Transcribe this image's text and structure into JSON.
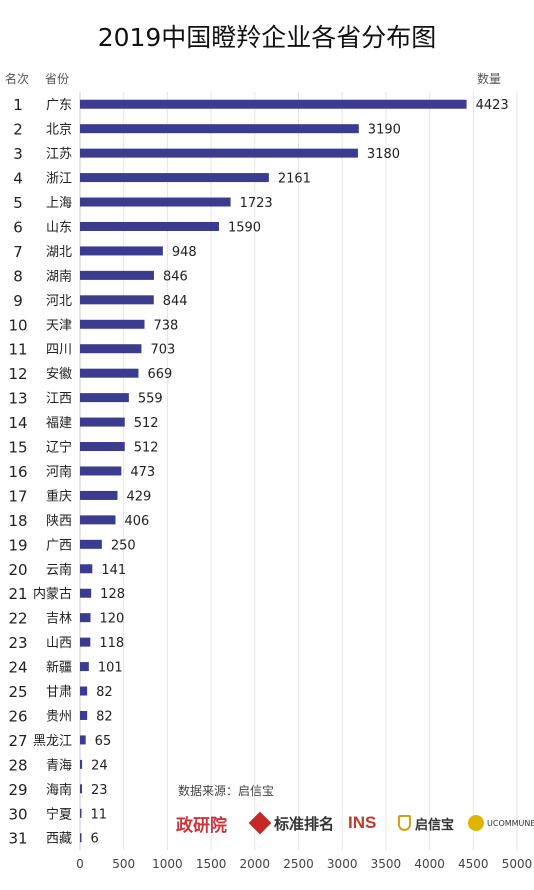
{
  "header": {
    "title": "2019中国瞪羚企业各省分布图",
    "rank_header": "名次",
    "province_header": "省份",
    "value_header": "数量"
  },
  "footer": {
    "source": "数据来源：启信宝",
    "logos": [
      {
        "name": "政研院",
        "icon": "zhengyanyuan-logo",
        "color": "#d0323a"
      },
      {
        "name": "标准排名",
        "icon": "biaozhun-paiming-logo",
        "color": "#c62828"
      },
      {
        "name": "INS",
        "icon": "ins-logo",
        "color": "#c0392b"
      },
      {
        "name": "启信宝",
        "icon": "qixinbao-logo",
        "color": "#d4a017"
      },
      {
        "name": "UCOMMUNE",
        "icon": "ucommune-logo",
        "color": "#e0b400"
      }
    ]
  },
  "chart_data": {
    "type": "bar",
    "orientation": "horizontal",
    "title": "2019中国瞪羚企业各省分布图",
    "bar_color": "#3b3b8f",
    "xlim": [
      0,
      5000
    ],
    "xticks": [
      0,
      500,
      1000,
      1500,
      2000,
      2500,
      3000,
      3500,
      4000,
      4500,
      5000
    ],
    "grid": true,
    "ranks": [
      1,
      2,
      3,
      4,
      5,
      6,
      7,
      8,
      9,
      10,
      11,
      12,
      13,
      14,
      15,
      16,
      17,
      18,
      19,
      20,
      21,
      22,
      23,
      24,
      25,
      26,
      27,
      28,
      29,
      30,
      31
    ],
    "categories": [
      "广东",
      "北京",
      "江苏",
      "浙江",
      "上海",
      "山东",
      "湖北",
      "湖南",
      "河北",
      "天津",
      "四川",
      "安徽",
      "江西",
      "福建",
      "辽宁",
      "河南",
      "重庆",
      "陕西",
      "广西",
      "云南",
      "内蒙古",
      "吉林",
      "山西",
      "新疆",
      "甘肃",
      "贵州",
      "黑龙江",
      "青海",
      "海南",
      "宁夏",
      "西藏"
    ],
    "values": [
      4423,
      3190,
      3180,
      2161,
      1723,
      1590,
      948,
      846,
      844,
      738,
      703,
      669,
      559,
      512,
      512,
      473,
      429,
      406,
      250,
      141,
      128,
      120,
      118,
      101,
      82,
      82,
      65,
      24,
      23,
      11,
      6
    ]
  }
}
